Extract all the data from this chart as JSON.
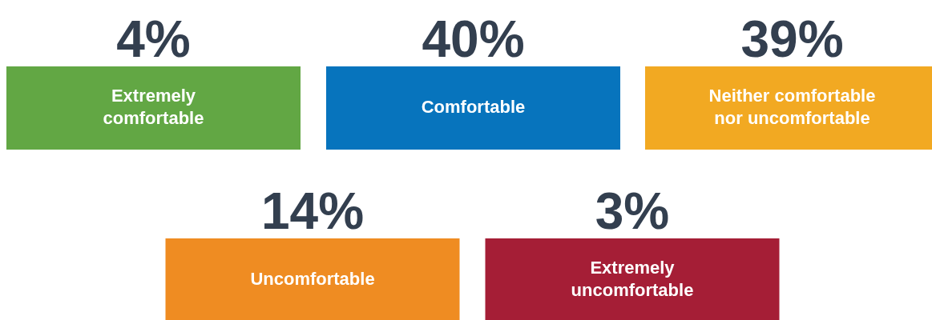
{
  "chart_data": {
    "type": "other",
    "categories": [
      "Extremely comfortable",
      "Comfortable",
      "Neither comfortable nor uncomfortable",
      "Uncomfortable",
      "Extremely uncomfortable"
    ],
    "values": [
      4,
      40,
      39,
      14,
      3
    ],
    "value_labels": [
      "4%",
      "40%",
      "39%",
      "14%",
      "3%"
    ],
    "colors": [
      "#62a744",
      "#0774bd",
      "#f2a922",
      "#ef8c22",
      "#a51e36"
    ]
  }
}
